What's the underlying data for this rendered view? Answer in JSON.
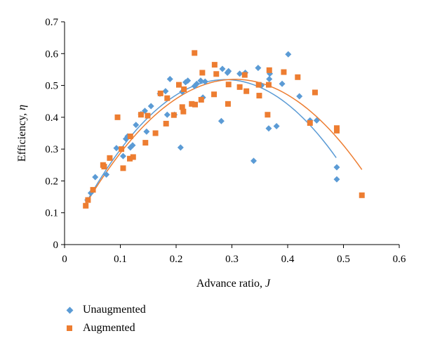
{
  "colors": {
    "unaugmented": "#5b9bd5",
    "augmented": "#ed7d31",
    "axis": "#000000"
  },
  "chart_data": {
    "type": "scatter",
    "xlabel_text": "Advance ratio, ",
    "xlabel_var": "J",
    "ylabel_text": "Efficiency, ",
    "ylabel_var": "η",
    "xlim": [
      0,
      0.6
    ],
    "ylim": [
      0,
      0.7
    ],
    "xticks": [
      0,
      0.1,
      0.2,
      0.3,
      0.4,
      0.5,
      0.6
    ],
    "xtick_labels": [
      "0",
      "0.1",
      "0.2",
      "0.3",
      "0.4",
      "0.5",
      "0.6"
    ],
    "yticks": [
      0,
      0.1,
      0.2,
      0.3,
      0.4,
      0.5,
      0.6,
      0.7
    ],
    "ytick_labels": [
      "0",
      "0.1",
      "0.2",
      "0.3",
      "0.4",
      "0.5",
      "0.6",
      "0.7"
    ],
    "grid": false,
    "legend_position": "bottom-left",
    "series": [
      {
        "name": "Unaugmented",
        "marker": "diamond",
        "color": "#5b9bd5",
        "points": [
          [
            0.041,
            0.14
          ],
          [
            0.047,
            0.162
          ],
          [
            0.055,
            0.212
          ],
          [
            0.075,
            0.22
          ],
          [
            0.093,
            0.303
          ],
          [
            0.105,
            0.278
          ],
          [
            0.11,
            0.332
          ],
          [
            0.113,
            0.34
          ],
          [
            0.118,
            0.305
          ],
          [
            0.122,
            0.312
          ],
          [
            0.128,
            0.376
          ],
          [
            0.137,
            0.41
          ],
          [
            0.144,
            0.42
          ],
          [
            0.147,
            0.355
          ],
          [
            0.155,
            0.435
          ],
          [
            0.171,
            0.474
          ],
          [
            0.181,
            0.482
          ],
          [
            0.184,
            0.408
          ],
          [
            0.189,
            0.52
          ],
          [
            0.197,
            0.408
          ],
          [
            0.208,
            0.305
          ],
          [
            0.211,
            0.48
          ],
          [
            0.217,
            0.51
          ],
          [
            0.221,
            0.515
          ],
          [
            0.233,
            0.498
          ],
          [
            0.237,
            0.505
          ],
          [
            0.244,
            0.515
          ],
          [
            0.248,
            0.462
          ],
          [
            0.252,
            0.512
          ],
          [
            0.281,
            0.388
          ],
          [
            0.283,
            0.552
          ],
          [
            0.292,
            0.54
          ],
          [
            0.294,
            0.545
          ],
          [
            0.314,
            0.537
          ],
          [
            0.324,
            0.54
          ],
          [
            0.339,
            0.263
          ],
          [
            0.347,
            0.555
          ],
          [
            0.353,
            0.5
          ],
          [
            0.366,
            0.365
          ],
          [
            0.367,
            0.52
          ],
          [
            0.368,
            0.537
          ],
          [
            0.38,
            0.372
          ],
          [
            0.39,
            0.505
          ],
          [
            0.401,
            0.598
          ],
          [
            0.421,
            0.466
          ],
          [
            0.44,
            0.39
          ],
          [
            0.452,
            0.39
          ],
          [
            0.488,
            0.243
          ],
          [
            0.488,
            0.205
          ]
        ],
        "trend": {
          "type": "polynomial",
          "x_range": [
            0.04,
            0.487
          ],
          "points": [
            [
              0.04,
              0.125
            ],
            [
              0.1,
              0.312
            ],
            [
              0.2,
              0.475
            ],
            [
              0.3,
              0.512
            ],
            [
              0.4,
              0.432
            ],
            [
              0.45,
              0.355
            ],
            [
              0.487,
              0.28
            ]
          ]
        }
      },
      {
        "name": "Augmented",
        "marker": "square",
        "color": "#ed7d31",
        "points": [
          [
            0.038,
            0.122
          ],
          [
            0.042,
            0.14
          ],
          [
            0.051,
            0.172
          ],
          [
            0.069,
            0.25
          ],
          [
            0.071,
            0.245
          ],
          [
            0.081,
            0.272
          ],
          [
            0.095,
            0.4
          ],
          [
            0.102,
            0.3
          ],
          [
            0.105,
            0.24
          ],
          [
            0.117,
            0.27
          ],
          [
            0.118,
            0.34
          ],
          [
            0.123,
            0.275
          ],
          [
            0.137,
            0.408
          ],
          [
            0.145,
            0.32
          ],
          [
            0.149,
            0.405
          ],
          [
            0.163,
            0.35
          ],
          [
            0.172,
            0.475
          ],
          [
            0.182,
            0.38
          ],
          [
            0.184,
            0.46
          ],
          [
            0.196,
            0.407
          ],
          [
            0.205,
            0.502
          ],
          [
            0.211,
            0.432
          ],
          [
            0.213,
            0.418
          ],
          [
            0.214,
            0.488
          ],
          [
            0.228,
            0.442
          ],
          [
            0.234,
            0.44
          ],
          [
            0.233,
            0.602
          ],
          [
            0.245,
            0.455
          ],
          [
            0.247,
            0.54
          ],
          [
            0.268,
            0.472
          ],
          [
            0.269,
            0.565
          ],
          [
            0.272,
            0.536
          ],
          [
            0.293,
            0.442
          ],
          [
            0.294,
            0.503
          ],
          [
            0.314,
            0.495
          ],
          [
            0.323,
            0.533
          ],
          [
            0.326,
            0.482
          ],
          [
            0.348,
            0.502
          ],
          [
            0.349,
            0.468
          ],
          [
            0.364,
            0.408
          ],
          [
            0.366,
            0.502
          ],
          [
            0.367,
            0.548
          ],
          [
            0.393,
            0.542
          ],
          [
            0.418,
            0.526
          ],
          [
            0.44,
            0.382
          ],
          [
            0.449,
            0.478
          ],
          [
            0.488,
            0.366
          ],
          [
            0.488,
            0.358
          ],
          [
            0.533,
            0.155
          ]
        ],
        "trend": {
          "type": "polynomial",
          "x_range": [
            0.038,
            0.533
          ],
          "points": [
            [
              0.038,
              0.118
            ],
            [
              0.1,
              0.3
            ],
            [
              0.2,
              0.46
            ],
            [
              0.3,
              0.512
            ],
            [
              0.4,
              0.47
            ],
            [
              0.45,
              0.405
            ],
            [
              0.533,
              0.237
            ]
          ]
        }
      }
    ]
  }
}
